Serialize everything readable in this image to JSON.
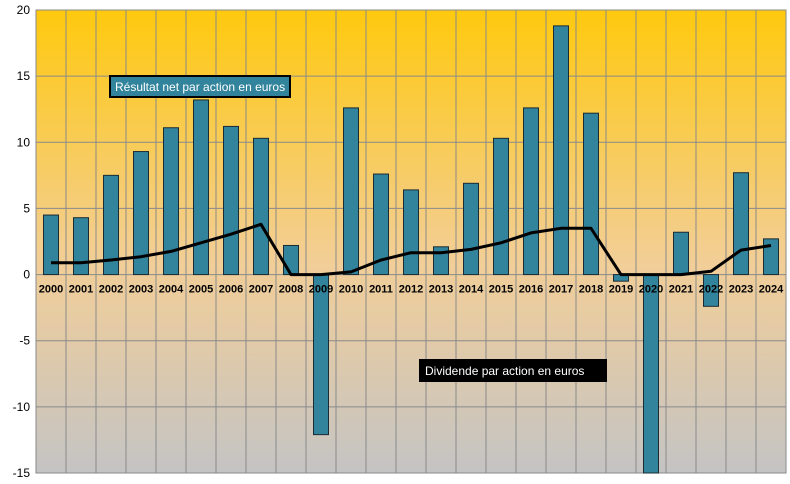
{
  "chart_data": {
    "type": "bar",
    "title": "",
    "xlabel": "",
    "ylabel": "",
    "ylim": [
      -15,
      20
    ],
    "yticks": [
      -15,
      -10,
      -5,
      0,
      5,
      10,
      15,
      20
    ],
    "grid": true,
    "legend": "none",
    "categories": [
      "2000",
      "2001",
      "2002",
      "2003",
      "2004",
      "2005",
      "2006",
      "2007",
      "2008",
      "2009",
      "2010",
      "2011",
      "2012",
      "2013",
      "2014",
      "2015",
      "2016",
      "2017",
      "2018",
      "2019",
      "2020",
      "2021",
      "2022",
      "2023",
      "2024"
    ],
    "series": [
      {
        "name": "Résultat net par action en euros",
        "kind": "bar",
        "color": "#31849B",
        "values": [
          4.5,
          4.3,
          7.5,
          9.3,
          11.1,
          13.2,
          11.2,
          10.3,
          2.2,
          -12.1,
          12.6,
          7.6,
          6.4,
          2.1,
          6.9,
          10.3,
          12.6,
          18.8,
          12.2,
          -0.5,
          -15,
          3.2,
          -2.4,
          7.7,
          2.7
        ]
      },
      {
        "name": "Dividende par action en euros",
        "kind": "line",
        "color": "#000000",
        "values": [
          0.9,
          0.9,
          1.1,
          1.35,
          1.75,
          2.4,
          3.05,
          3.8,
          0,
          0,
          0.2,
          1.1,
          1.65,
          1.65,
          1.9,
          2.4,
          3.15,
          3.5,
          3.5,
          0,
          0,
          0,
          0.25,
          1.85,
          2.2
        ]
      }
    ],
    "annotations": [
      {
        "text": "Résultat net par action en euros",
        "target": "bars"
      },
      {
        "text": "Dividende par action en euros",
        "target": "line"
      }
    ]
  },
  "colors": {
    "bar_fill": "#31849B",
    "bar_stroke": "#1b2b33",
    "line": "#000000",
    "gradient_top": "#FFC90E",
    "gradient_mid": "#F5CE8A",
    "gradient_bottom": "#C4C4C4",
    "label_box_bar": "#31849B",
    "label_box_line": "#000000"
  }
}
